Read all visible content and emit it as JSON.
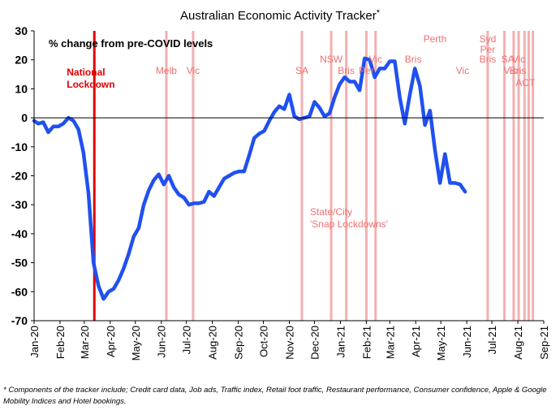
{
  "chart_data": {
    "type": "line",
    "title": "Australian Economic Activity Tracker",
    "title_mark": "*",
    "inner_label": "% change from pre-COVID levels",
    "ylim": [
      -70,
      30
    ],
    "y_ticks": [
      30,
      20,
      10,
      0,
      -10,
      -20,
      -30,
      -40,
      -50,
      -60,
      -70
    ],
    "x_range": [
      "2020-01-01",
      "2021-09-01"
    ],
    "x_ticks": [
      "Jan-20",
      "Feb-20",
      "Mar-20",
      "Apr-20",
      "May-20",
      "Jun-20",
      "Jul-20",
      "Aug-20",
      "Sep-20",
      "Oct-20",
      "Nov-20",
      "Dec-20",
      "Jan-21",
      "Feb-21",
      "Mar-21",
      "Apr-21",
      "May-21",
      "Jun-21",
      "Jul-21",
      "Aug-21",
      "Sep-21"
    ],
    "line_color": "#2050f0",
    "series": [
      {
        "points": [
          [
            "2020-01-01",
            -1
          ],
          [
            "2020-01-06",
            -2
          ],
          [
            "2020-01-12",
            -1.5
          ],
          [
            "2020-01-18",
            -5
          ],
          [
            "2020-01-24",
            -3
          ],
          [
            "2020-01-30",
            -3
          ],
          [
            "2020-02-05",
            -2
          ],
          [
            "2020-02-11",
            0
          ],
          [
            "2020-02-17",
            -1
          ],
          [
            "2020-02-23",
            -4
          ],
          [
            "2020-02-29",
            -12
          ],
          [
            "2020-03-06",
            -26
          ],
          [
            "2020-03-12",
            -50
          ],
          [
            "2020-03-18",
            -58
          ],
          [
            "2020-03-24",
            -62.5
          ],
          [
            "2020-03-30",
            -60
          ],
          [
            "2020-04-05",
            -59
          ],
          [
            "2020-04-11",
            -56
          ],
          [
            "2020-04-17",
            -52
          ],
          [
            "2020-04-23",
            -47
          ],
          [
            "2020-04-29",
            -41
          ],
          [
            "2020-05-05",
            -38
          ],
          [
            "2020-05-11",
            -30
          ],
          [
            "2020-05-17",
            -25
          ],
          [
            "2020-05-23",
            -21.5
          ],
          [
            "2020-05-29",
            -19.5
          ],
          [
            "2020-06-04",
            -23
          ],
          [
            "2020-06-10",
            -20
          ],
          [
            "2020-06-16",
            -24
          ],
          [
            "2020-06-22",
            -26.5
          ],
          [
            "2020-06-28",
            -27.5
          ],
          [
            "2020-07-04",
            -30
          ],
          [
            "2020-07-10",
            -29.5
          ],
          [
            "2020-07-16",
            -29.5
          ],
          [
            "2020-07-22",
            -29
          ],
          [
            "2020-07-28",
            -25.5
          ],
          [
            "2020-08-03",
            -27
          ],
          [
            "2020-08-09",
            -24
          ],
          [
            "2020-08-15",
            -21
          ],
          [
            "2020-08-21",
            -20
          ],
          [
            "2020-08-27",
            -19
          ],
          [
            "2020-09-02",
            -18.5
          ],
          [
            "2020-09-08",
            -18.5
          ],
          [
            "2020-09-14",
            -13
          ],
          [
            "2020-09-20",
            -7
          ],
          [
            "2020-09-26",
            -5.5
          ],
          [
            "2020-10-02",
            -4.5
          ],
          [
            "2020-10-08",
            -1
          ],
          [
            "2020-10-14",
            2
          ],
          [
            "2020-10-20",
            4
          ],
          [
            "2020-10-26",
            3
          ],
          [
            "2020-11-01",
            8
          ],
          [
            "2020-11-07",
            0.5
          ],
          [
            "2020-11-13",
            -0.5
          ],
          [
            "2020-11-19",
            0
          ],
          [
            "2020-11-25",
            0.5
          ],
          [
            "2020-12-01",
            5.5
          ],
          [
            "2020-12-07",
            3.5
          ],
          [
            "2020-12-13",
            0.5
          ],
          [
            "2020-12-19",
            1.5
          ],
          [
            "2020-12-25",
            7
          ],
          [
            "2020-12-31",
            11.5
          ],
          [
            "2021-01-06",
            14
          ],
          [
            "2021-01-12",
            12.5
          ],
          [
            "2021-01-18",
            12.5
          ],
          [
            "2021-01-24",
            9.5
          ],
          [
            "2021-01-30",
            20.5
          ],
          [
            "2021-02-05",
            20
          ],
          [
            "2021-02-11",
            14
          ],
          [
            "2021-02-17",
            17
          ],
          [
            "2021-02-23",
            17
          ],
          [
            "2021-03-01",
            19.5
          ],
          [
            "2021-03-07",
            19.5
          ],
          [
            "2021-03-13",
            7
          ],
          [
            "2021-03-19",
            -2
          ],
          [
            "2021-03-25",
            8
          ],
          [
            "2021-03-31",
            17
          ],
          [
            "2021-04-06",
            11
          ],
          [
            "2021-04-12",
            -2.5
          ],
          [
            "2021-04-18",
            2.5
          ],
          [
            "2021-04-24",
            -11
          ],
          [
            "2021-04-30",
            -22.5
          ],
          [
            "2021-05-06",
            -12.5
          ],
          [
            "2021-05-12",
            -22.5
          ],
          [
            "2021-05-18",
            -22.5
          ],
          [
            "2021-05-24",
            -23
          ],
          [
            "2021-05-30",
            -25.5
          ]
        ]
      }
    ],
    "national_lockdown": {
      "date": "2020-03-13",
      "label_line1": "National",
      "label_line2": "Lockdown",
      "color": "#e00000"
    },
    "snap_lockdowns": {
      "dates": [
        "2020-06-07",
        "2020-07-09",
        "2020-11-16",
        "2020-12-21",
        "2021-01-08",
        "2021-02-01",
        "2021-02-12",
        "2021-06-26",
        "2021-07-16",
        "2021-07-27",
        "2021-08-02",
        "2021-08-09",
        "2021-08-14",
        "2021-08-19"
      ],
      "color": "#f4b0b0",
      "label_color": "#f07070",
      "annotation_line1": "State/City",
      "annotation_line2": "'Snap Lockdowns'",
      "labels": [
        {
          "text": "Melb",
          "date": "2020-06-07",
          "row": 1
        },
        {
          "text": "Vic",
          "date": "2020-07-09",
          "row": 1
        },
        {
          "text": "SA",
          "date": "2020-11-16",
          "row": 1
        },
        {
          "text": "NSW",
          "date": "2020-12-21",
          "row": 0
        },
        {
          "text": "Bris",
          "date": "2021-01-08",
          "row": 1
        },
        {
          "text": "Per",
          "date": "2021-02-01",
          "row": 1
        },
        {
          "text": "Vic",
          "date": "2021-02-12",
          "row": 0
        },
        {
          "text": "Bris",
          "date": "2021-03-29",
          "row": 0
        },
        {
          "text": "Perth",
          "date": "2021-04-24",
          "row": -1
        },
        {
          "text": "Vic",
          "date": "2021-05-27",
          "row": 1
        },
        {
          "text": "Syd",
          "date": "2021-06-26",
          "row": -1
        },
        {
          "text": "Per",
          "date": "2021-06-26",
          "row": -0.5
        },
        {
          "text": "Bris",
          "date": "2021-06-26",
          "row": 0
        },
        {
          "text": "SA",
          "date": "2021-07-20",
          "row": 0
        },
        {
          "text": "Vic",
          "date": "2021-08-02",
          "row": 0
        },
        {
          "text": "Vic",
          "date": "2021-07-23",
          "row": 1
        },
        {
          "text": "Bris",
          "date": "2021-08-01",
          "row": 1
        },
        {
          "text": "ACT",
          "date": "2021-08-10",
          "row": 2
        }
      ]
    }
  },
  "footnote": "* Components of the tracker include; Credit card data, Job ads, Traffic index, Retail foot traffic, Restaurant performance, Consumer confidence, Apple & Google Mobility Indices and Hotel bookings."
}
